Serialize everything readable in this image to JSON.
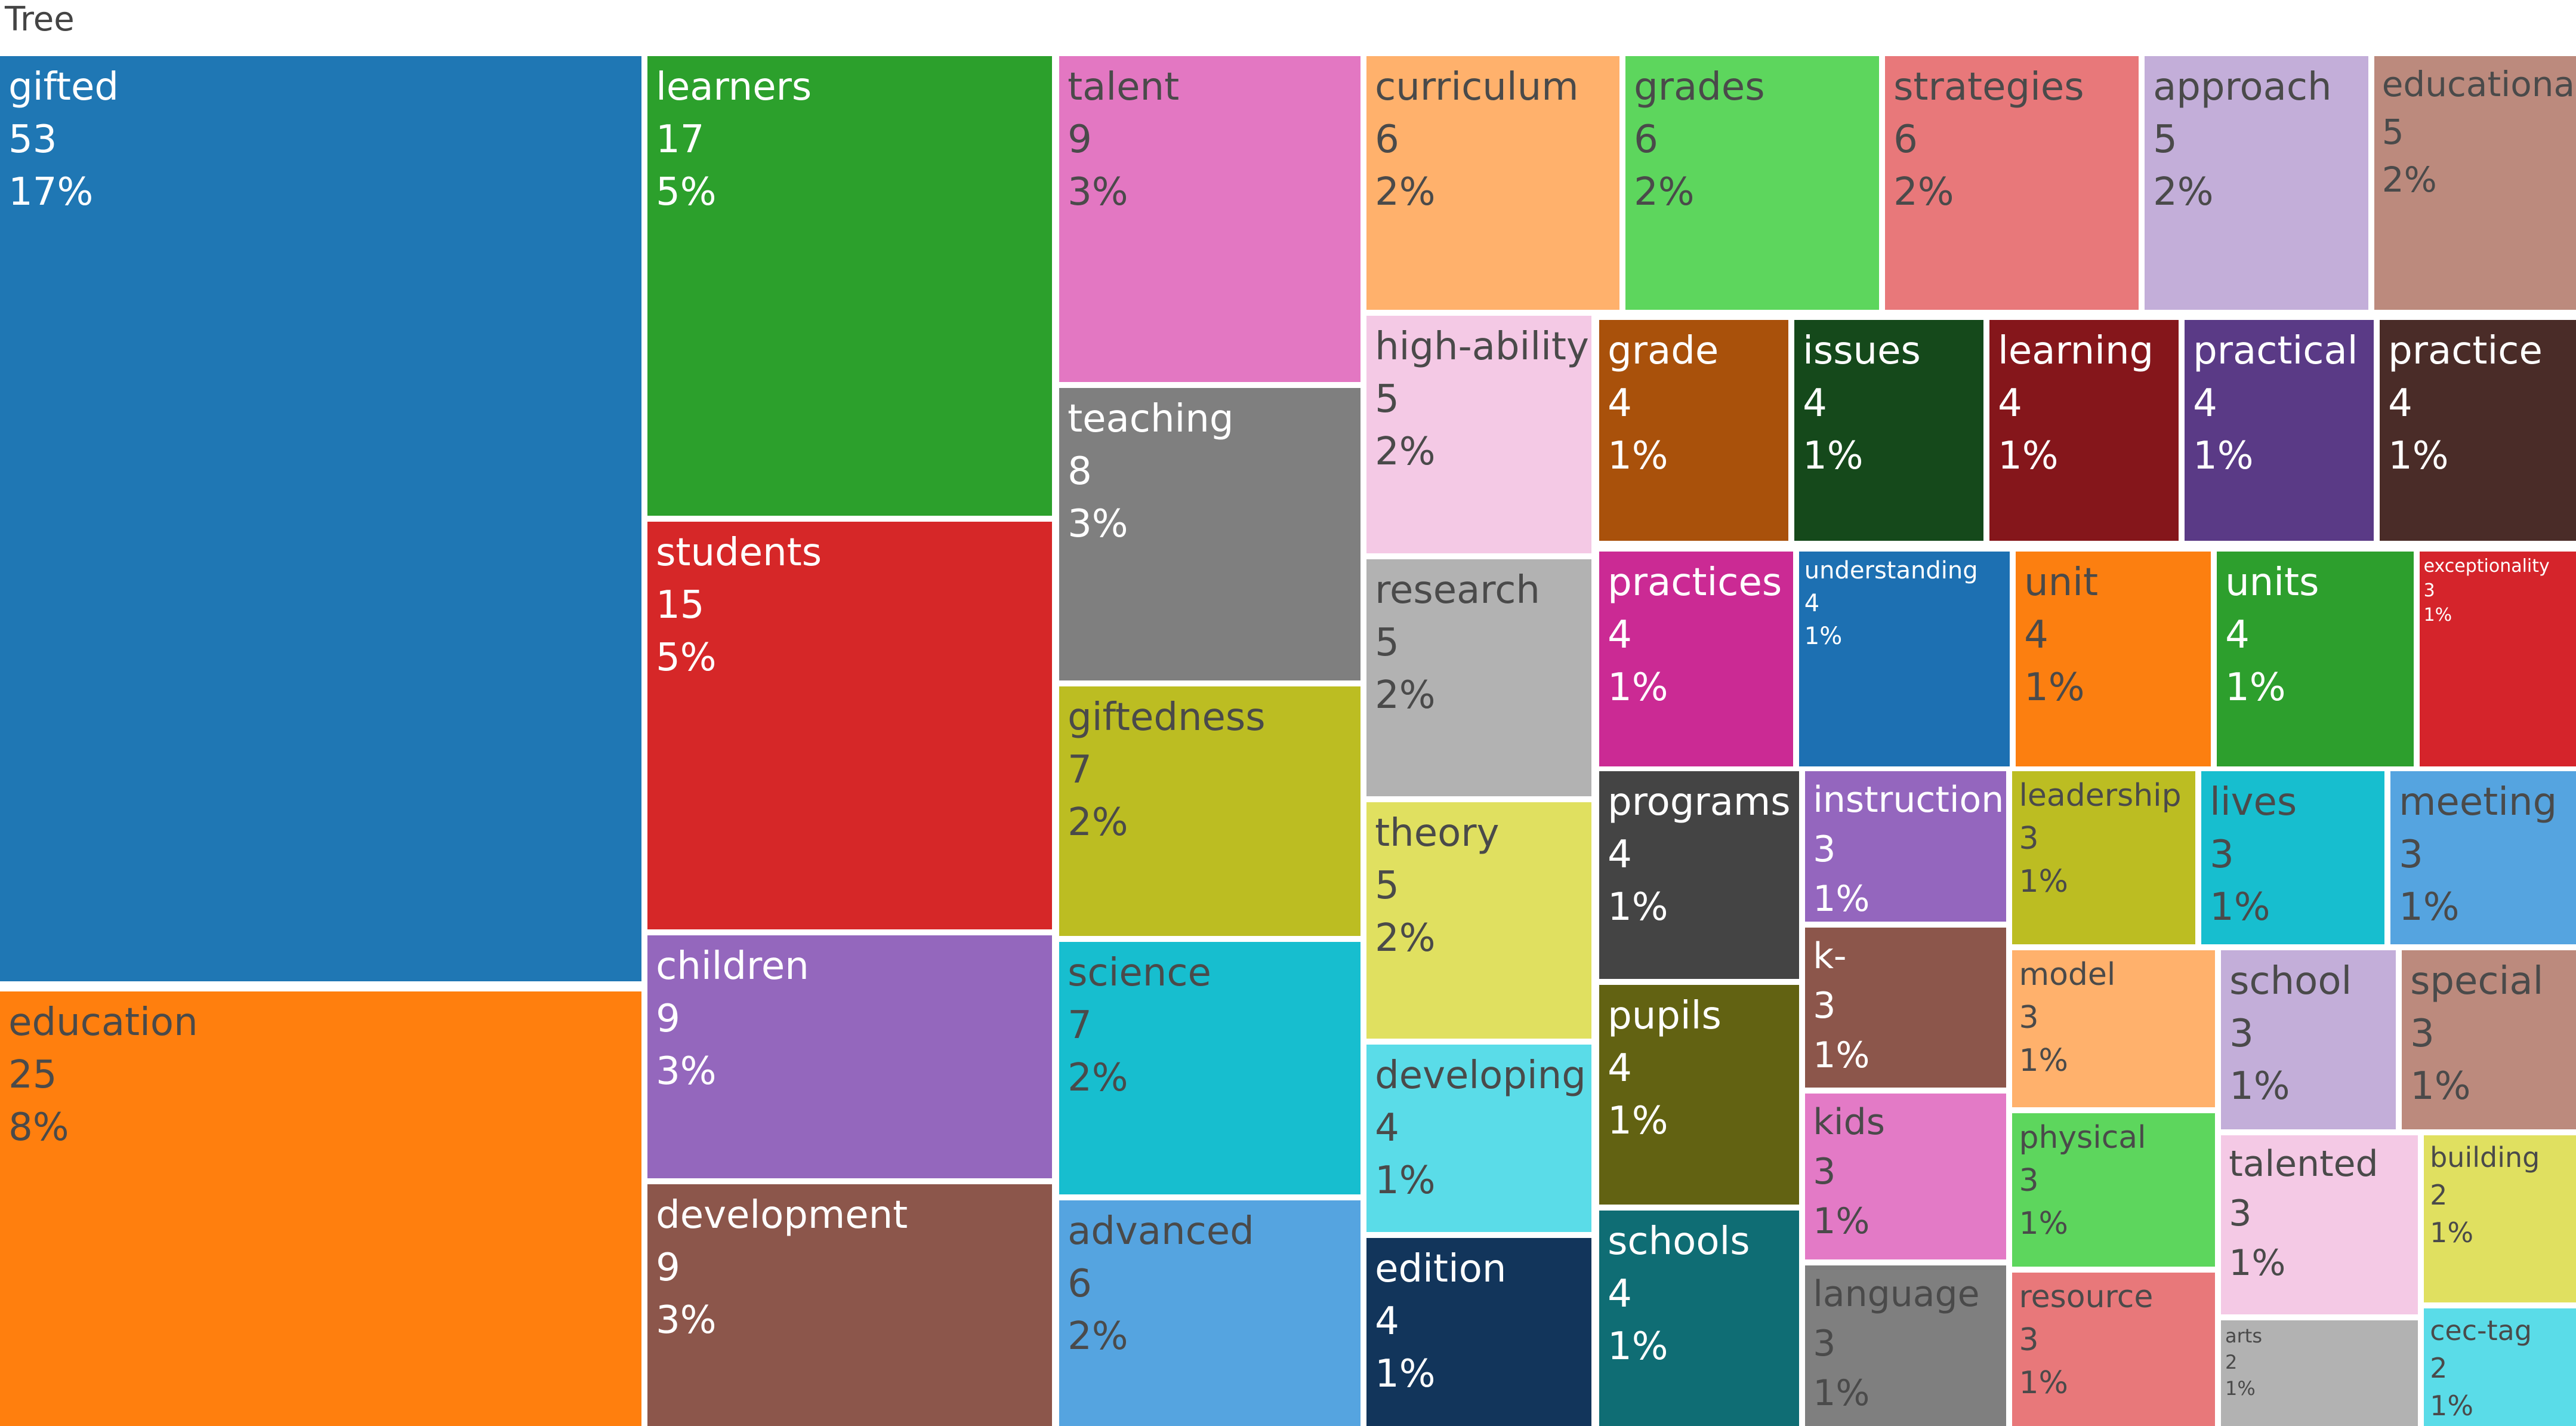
{
  "chart_data": {
    "type": "treemap",
    "title": "Tree",
    "value_label": "count",
    "tiles": [
      {
        "label": "gifted",
        "value": 53,
        "percent": "17%",
        "color": "#1f77b4"
      },
      {
        "label": "education",
        "value": 25,
        "percent": "8%",
        "color": "#ff7f0e"
      },
      {
        "label": "learners",
        "value": 17,
        "percent": "5%",
        "color": "#2ca02c"
      },
      {
        "label": "students",
        "value": 15,
        "percent": "5%",
        "color": "#d62728"
      },
      {
        "label": "children",
        "value": 9,
        "percent": "3%",
        "color": "#9467bd"
      },
      {
        "label": "development",
        "value": 9,
        "percent": "3%",
        "color": "#8c564b"
      },
      {
        "label": "talent",
        "value": 9,
        "percent": "3%",
        "color": "#e377c2"
      },
      {
        "label": "teaching",
        "value": 8,
        "percent": "3%",
        "color": "#7f7f7f"
      },
      {
        "label": "giftedness",
        "value": 7,
        "percent": "2%",
        "color": "#bcbd22"
      },
      {
        "label": "science",
        "value": 7,
        "percent": "2%",
        "color": "#17becf"
      },
      {
        "label": "advanced",
        "value": 6,
        "percent": "2%",
        "color": "#55a4e0"
      },
      {
        "label": "curriculum",
        "value": 6,
        "percent": "2%",
        "color": "#ffb16c"
      },
      {
        "label": "grades",
        "value": 6,
        "percent": "2%",
        "color": "#5dd65d"
      },
      {
        "label": "strategies",
        "value": 6,
        "percent": "2%",
        "color": "#e8787a"
      },
      {
        "label": "approach",
        "value": 5,
        "percent": "2%",
        "color": "#c3aed9"
      },
      {
        "label": "educational",
        "value": 5,
        "percent": "2%",
        "color": "#bc8a7d"
      },
      {
        "label": "high-ability",
        "value": 5,
        "percent": "2%",
        "color": "#f4c9e5"
      },
      {
        "label": "research",
        "value": 5,
        "percent": "2%",
        "color": "#b2b2b2"
      },
      {
        "label": "theory",
        "value": 5,
        "percent": "2%",
        "color": "#e0e060"
      },
      {
        "label": "developing",
        "value": 4,
        "percent": "1%",
        "color": "#5adce8"
      },
      {
        "label": "edition",
        "value": 4,
        "percent": "1%",
        "color": "#12355b"
      },
      {
        "label": "grade",
        "value": 4,
        "percent": "1%",
        "color": "#a9510b"
      },
      {
        "label": "issues",
        "value": 4,
        "percent": "1%",
        "color": "#15491b"
      },
      {
        "label": "learning",
        "value": 4,
        "percent": "1%",
        "color": "#85161b"
      },
      {
        "label": "practical",
        "value": 4,
        "percent": "1%",
        "color": "#5a3a86"
      },
      {
        "label": "practice",
        "value": 4,
        "percent": "1%",
        "color": "#4a2c28"
      },
      {
        "label": "practices",
        "value": 4,
        "percent": "1%",
        "color": "#cb2a94"
      },
      {
        "label": "understanding",
        "value": 4,
        "percent": "1%",
        "color": "#1d70b2"
      },
      {
        "label": "unit",
        "value": 4,
        "percent": "1%",
        "color": "#fc7f10"
      },
      {
        "label": "units",
        "value": 4,
        "percent": "1%",
        "color": "#2d9f2d"
      },
      {
        "label": "exceptionality",
        "value": 3,
        "percent": "1%",
        "color": "#d5242b"
      },
      {
        "label": "programs",
        "value": 4,
        "percent": "1%",
        "color": "#444444"
      },
      {
        "label": "pupils",
        "value": 4,
        "percent": "1%",
        "color": "#626212"
      },
      {
        "label": "schools",
        "value": 4,
        "percent": "1%",
        "color": "#0f6d74"
      },
      {
        "label": "instruction",
        "value": 3,
        "percent": "1%",
        "color": "#9466be"
      },
      {
        "label": "k-",
        "value": 3,
        "percent": "1%",
        "color": "#8c564b"
      },
      {
        "label": "kids",
        "value": 3,
        "percent": "1%",
        "color": "#e37ac6"
      },
      {
        "label": "language",
        "value": 3,
        "percent": "1%",
        "color": "#7f7f7f"
      },
      {
        "label": "leadership",
        "value": 3,
        "percent": "1%",
        "color": "#bcbd22"
      },
      {
        "label": "lives",
        "value": 3,
        "percent": "1%",
        "color": "#17becf"
      },
      {
        "label": "meeting",
        "value": 3,
        "percent": "1%",
        "color": "#55a4e0"
      },
      {
        "label": "model",
        "value": 3,
        "percent": "1%",
        "color": "#ffb16c"
      },
      {
        "label": "physical",
        "value": 3,
        "percent": "1%",
        "color": "#5dd65d"
      },
      {
        "label": "resource",
        "value": 3,
        "percent": "1%",
        "color": "#e8787a"
      },
      {
        "label": "school",
        "value": 3,
        "percent": "1%",
        "color": "#c3aed9"
      },
      {
        "label": "special",
        "value": 3,
        "percent": "1%",
        "color": "#bc8a7d"
      },
      {
        "label": "talented",
        "value": 3,
        "percent": "1%",
        "color": "#f4c9e5"
      },
      {
        "label": "arts",
        "value": 2,
        "percent": "1%",
        "color": "#b2b2b2"
      },
      {
        "label": "building",
        "value": 2,
        "percent": "1%",
        "color": "#e0e060"
      },
      {
        "label": "cec-tag",
        "value": 2,
        "percent": "1%",
        "color": "#5adce8"
      }
    ]
  }
}
